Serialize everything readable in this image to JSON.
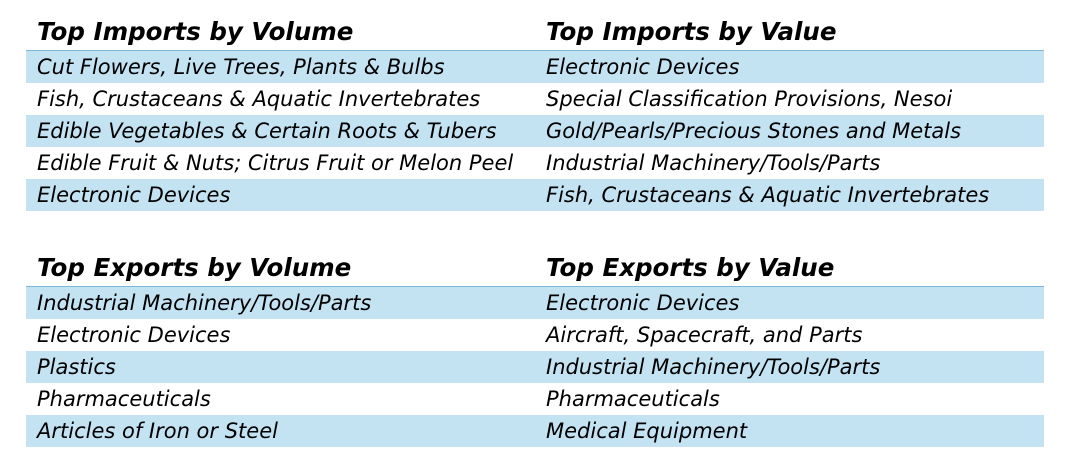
{
  "imports": {
    "headers": [
      "Top Imports by Volume",
      "Top Imports by Value"
    ],
    "rows": [
      [
        "Cut Flowers, Live Trees, Plants & Bulbs",
        "Electronic Devices"
      ],
      [
        "Fish, Crustaceans & Aquatic Invertebrates",
        "Special Classification Provisions, Nesoi"
      ],
      [
        "Edible Vegetables & Certain Roots & Tubers",
        "Gold/Pearls/Precious Stones and Metals"
      ],
      [
        "Edible Fruit & Nuts; Citrus Fruit or Melon Peel",
        "Industrial Machinery/Tools/Parts"
      ],
      [
        "Electronic Devices",
        "Fish, Crustaceans & Aquatic Invertebrates"
      ]
    ]
  },
  "exports": {
    "headers": [
      "Top Exports by Volume",
      "Top Exports by Value"
    ],
    "rows": [
      [
        "Industrial Machinery/Tools/Parts",
        "Electronic Devices"
      ],
      [
        "Electronic Devices",
        "Aircraft, Spacecraft, and Parts"
      ],
      [
        "Plastics",
        "Industrial Machinery/Tools/Parts"
      ],
      [
        "Pharmaceuticals",
        "Pharmaceuticals"
      ],
      [
        "Articles of Iron or Steel",
        "Medical Equipment"
      ]
    ]
  },
  "colors": {
    "row_shade": "#c3e3f3",
    "header_rule": "#7fb7d6"
  }
}
